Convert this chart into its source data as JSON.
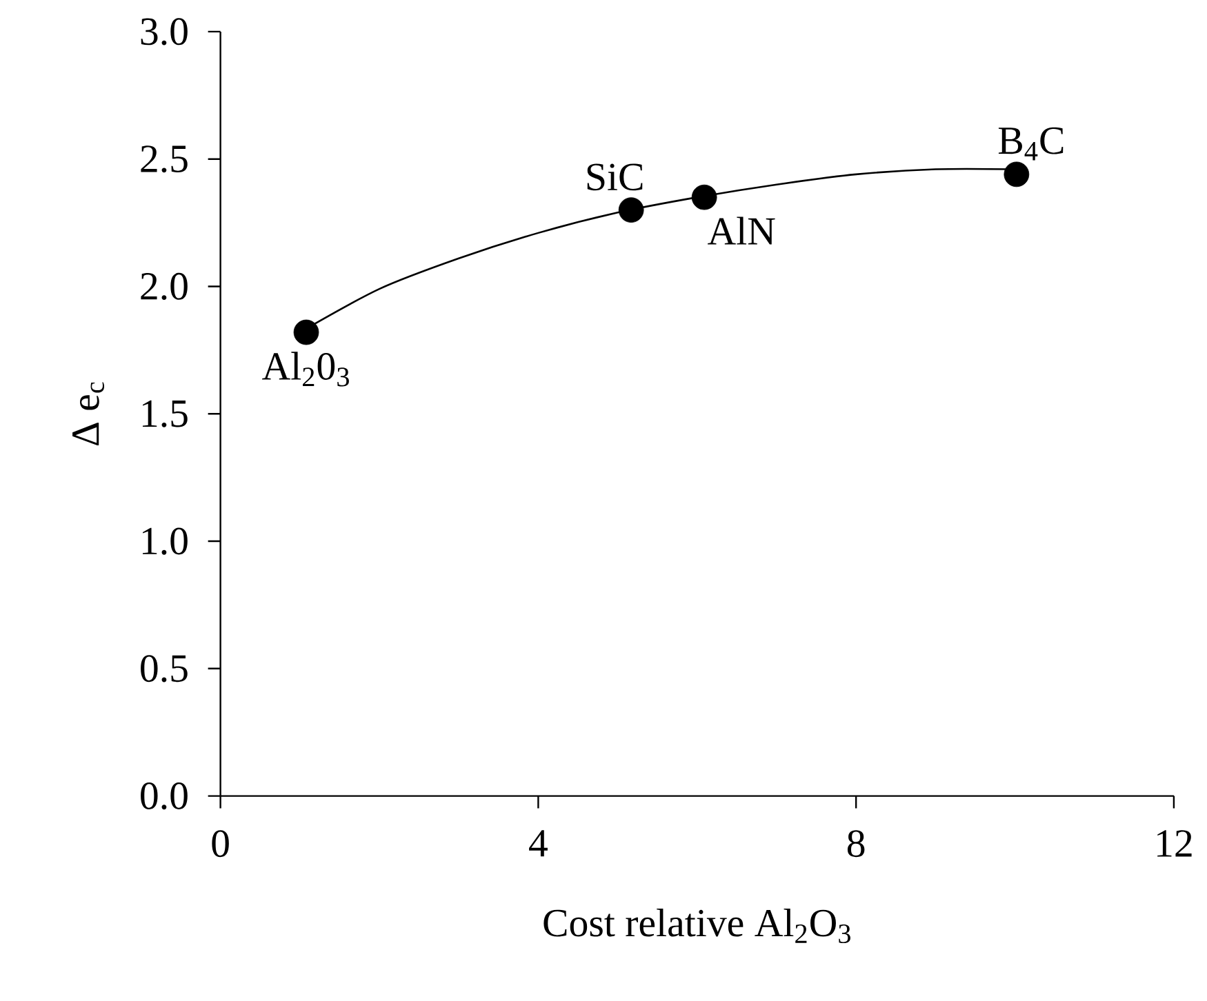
{
  "chart_data": {
    "type": "scatter",
    "xlabel": "Cost relative Al$_{2}$O$_{3}$",
    "ylabel": "Δ e$_{c}$",
    "xlim": [
      0,
      12
    ],
    "xticks": [
      0,
      4,
      8,
      12
    ],
    "ylim": [
      0,
      3
    ],
    "yticks": [
      {
        "value": 0,
        "label": "0.0"
      },
      {
        "value": 0.5,
        "label": "0.5"
      },
      {
        "value": 1,
        "label": "1.0"
      },
      {
        "value": 1.5,
        "label": "1.5"
      },
      {
        "value": 2,
        "label": "2.0"
      },
      {
        "value": 2.5,
        "label": "2.5"
      },
      {
        "value": 3,
        "label": "3.0"
      }
    ],
    "grid": false,
    "series": [
      {
        "type": "line",
        "color": "#000000",
        "line_style": "solid",
        "marker": "none",
        "x": [
          1,
          2,
          3,
          4,
          5,
          6,
          7,
          8,
          9,
          10
        ],
        "values": [
          1.82,
          1.99,
          2.11,
          2.21,
          2.29,
          2.35,
          2.4,
          2.44,
          2.46,
          2.46
        ]
      },
      {
        "color": "#000000",
        "marker": "circle",
        "x": [
          1.08,
          5.17,
          6.09,
          10.02
        ],
        "values": [
          1.82,
          2.3,
          2.35,
          2.44
        ]
      }
    ],
    "annotations": [
      {
        "text": "Al$_{2}$0$_{3}$",
        "x": 1.08,
        "y": 1.82
      },
      {
        "text": "SiC",
        "x": 5.17,
        "y": 2.3
      },
      {
        "text": "AlN",
        "x": 6.09,
        "y": 2.35
      },
      {
        "text": "B$_{4}$C",
        "x": 10.02,
        "y": 2.44
      }
    ]
  }
}
